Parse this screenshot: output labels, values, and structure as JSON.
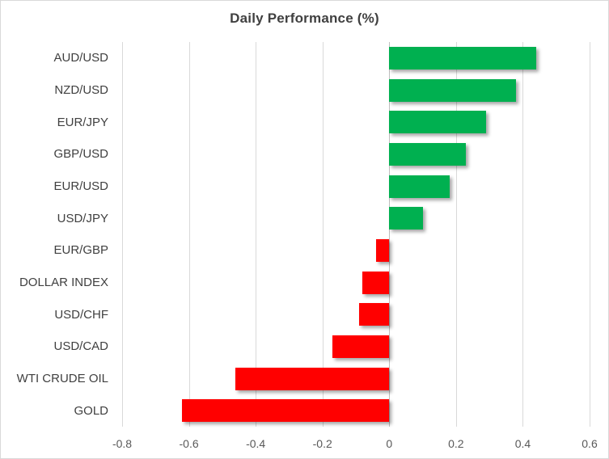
{
  "title": "Daily Performance (%)",
  "colors": {
    "positive": "#00b050",
    "negative": "#ff0000",
    "gridline": "#d9d9d9",
    "gridline_zero": "#bfbfbf",
    "title_text": "#404040",
    "category_text": "#404040",
    "tick_text": "#595959",
    "border": "#d9d9d9",
    "background": "#ffffff"
  },
  "chart_data": {
    "type": "bar",
    "orientation": "horizontal",
    "title": "Daily Performance (%)",
    "xlabel": "",
    "ylabel": "",
    "categories": [
      "AUD/USD",
      "NZD/USD",
      "EUR/JPY",
      "GBP/USD",
      "EUR/USD",
      "USD/JPY",
      "EUR/GBP",
      "DOLLAR INDEX",
      "USD/CHF",
      "USD/CAD",
      "WTI CRUDE OIL",
      "GOLD"
    ],
    "values": [
      0.44,
      0.38,
      0.29,
      0.23,
      0.18,
      0.1,
      -0.04,
      -0.08,
      -0.09,
      -0.17,
      -0.46,
      -0.62
    ],
    "xlim": [
      -0.8,
      0.6
    ],
    "xticks": [
      -0.8,
      -0.6,
      -0.4,
      -0.2,
      0,
      0.2,
      0.4,
      0.6
    ],
    "grid": true,
    "legend": false,
    "data_labels": false
  }
}
